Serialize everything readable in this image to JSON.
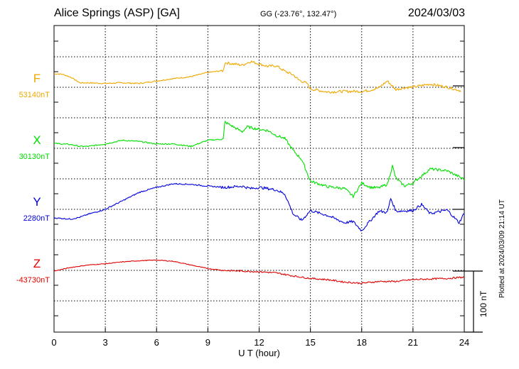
{
  "header": {
    "station": "Alice Springs (ASP)  [GA]",
    "coords": "GG (-23.76°, 132.47°)",
    "date": "2024/03/03",
    "plotted": "Plotted at 2024/03/09 21:14 UT"
  },
  "chart_data": {
    "type": "line",
    "title": "Alice Springs (ASP)  [GA]",
    "xlabel": "U T (hour)",
    "xlim": [
      0,
      24
    ],
    "xticks": [
      "0",
      "3",
      "6",
      "9",
      "12",
      "15",
      "18",
      "21",
      "24"
    ],
    "scale_bar": "100 nT",
    "grid": true,
    "series": [
      {
        "name": "F",
        "baseline": "53140nT",
        "color": "#f0a800",
        "x": [
          0,
          0.5,
          1,
          1.5,
          2,
          3,
          4,
          5,
          6,
          7,
          8,
          9,
          9.9,
          10,
          11,
          11.5,
          12,
          12.5,
          13,
          13.5,
          14,
          14.3,
          14.8,
          15,
          16,
          17,
          18,
          18.5,
          19,
          19.5,
          20,
          20.5,
          21,
          22,
          23,
          23.8
        ],
        "y": [
          20,
          19,
          14,
          5,
          5,
          4,
          5,
          4,
          8,
          12,
          15,
          22,
          25,
          38,
          34,
          40,
          36,
          32,
          33,
          24,
          18,
          10,
          4,
          -5,
          -10,
          -9,
          -9,
          -7,
          -3,
          8,
          -6,
          -3,
          -2,
          3,
          -2,
          -8
        ]
      },
      {
        "name": "X",
        "baseline": "30130nT",
        "color": "#00e000",
        "x": [
          0,
          0.5,
          1,
          1.5,
          2,
          3,
          4,
          5,
          6,
          7,
          8,
          9,
          9.9,
          10,
          11,
          11.3,
          12,
          12.5,
          13,
          13.5,
          14,
          14.5,
          15,
          16,
          17,
          17.5,
          18,
          18.5,
          19,
          19.5,
          19.8,
          20,
          20.5,
          21,
          22,
          23,
          24
        ],
        "y": [
          7,
          6,
          5,
          2,
          2,
          6,
          12,
          10,
          6,
          6,
          2,
          12,
          14,
          42,
          26,
          34,
          30,
          28,
          20,
          15,
          -5,
          -20,
          -55,
          -64,
          -67,
          -80,
          -58,
          -65,
          -66,
          -60,
          -30,
          -50,
          -63,
          -58,
          -35,
          -38,
          -52
        ]
      },
      {
        "name": "Y",
        "baseline": "2280nT",
        "color": "#0000e0",
        "x": [
          0,
          0.5,
          1,
          1.5,
          2,
          3,
          4,
          5,
          6,
          7,
          8,
          9,
          10,
          11,
          11.5,
          12,
          13,
          13.5,
          14,
          14.5,
          15,
          16,
          17,
          17.5,
          18,
          18.3,
          19,
          19.5,
          19.7,
          20,
          21,
          21.5,
          22,
          23,
          23.7,
          24
        ],
        "y": [
          -14,
          -15,
          -16,
          -13,
          -8,
          0,
          14,
          28,
          36,
          42,
          41,
          38,
          36,
          38,
          34,
          36,
          32,
          25,
          -8,
          -18,
          -2,
          -10,
          -22,
          -20,
          -35,
          -25,
          -3,
          -5,
          18,
          -3,
          -2,
          8,
          -7,
          -1,
          -22,
          -6
        ]
      },
      {
        "name": "Z",
        "baseline": "-43730nT",
        "color": "#e00000",
        "x": [
          0,
          0.5,
          1,
          1.5,
          2,
          3,
          4,
          5,
          6,
          7,
          8,
          9,
          10,
          11,
          12,
          13,
          14,
          15,
          16,
          17,
          18,
          18.3,
          19,
          20,
          21,
          22,
          23,
          24
        ],
        "y": [
          0,
          3,
          6,
          8,
          10,
          12,
          15,
          17,
          18,
          16,
          10,
          4,
          1,
          0,
          -1,
          -3,
          -8,
          -12,
          -14,
          -18,
          -20,
          -19,
          -17,
          -17,
          -14,
          -13,
          -12,
          -10
        ]
      }
    ]
  }
}
